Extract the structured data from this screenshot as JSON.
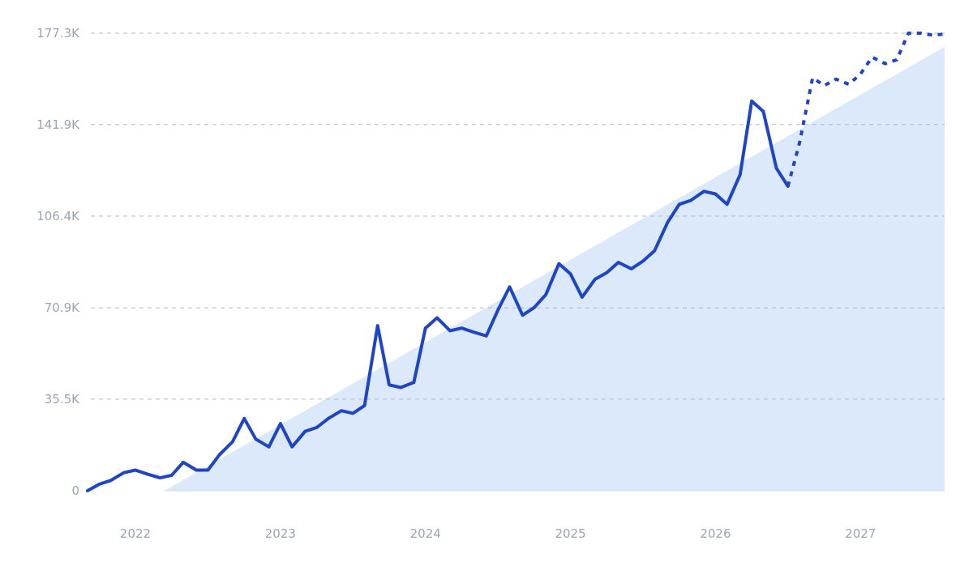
{
  "chart_data": {
    "type": "line",
    "title": "",
    "xlabel": "",
    "ylabel": "",
    "ylim": [
      0,
      177300
    ],
    "yticks": [
      0,
      35500,
      70900,
      106400,
      141900,
      177300
    ],
    "ytick_labels": [
      "0",
      "35.5K",
      "70.9K",
      "106.4K",
      "141.9K",
      "177.3K"
    ],
    "xlim": [
      2021.67,
      2027.58
    ],
    "xticks": [
      2022,
      2023,
      2024,
      2025,
      2026,
      2027
    ],
    "xtick_labels": [
      "2022",
      "2023",
      "2024",
      "2025",
      "2026",
      "2027"
    ],
    "grid": "horizontal dashed",
    "legend": "none",
    "colors": {
      "line": "#1f45c7",
      "area": "#dbe9fa",
      "grid": "#aebbd0",
      "tick": "#9aa3b5"
    },
    "series": [
      {
        "style": "solid",
        "x": [
          2021.67,
          2021.75,
          2021.83,
          2021.92,
          2022.0,
          2022.08,
          2022.17,
          2022.25,
          2022.33,
          2022.42,
          2022.5,
          2022.58,
          2022.67,
          2022.75,
          2022.83,
          2022.92,
          2023.0,
          2023.08,
          2023.17,
          2023.25,
          2023.33,
          2023.42,
          2023.5,
          2023.58,
          2023.67,
          2023.75,
          2023.83,
          2023.92,
          2024.0,
          2024.08,
          2024.17,
          2024.25,
          2024.33,
          2024.42,
          2024.5,
          2024.58,
          2024.67,
          2024.75,
          2024.83,
          2024.92,
          2025.0,
          2025.08,
          2025.17,
          2025.25,
          2025.33,
          2025.42,
          2025.5,
          2025.58,
          2025.67,
          2025.75,
          2025.83,
          2025.92,
          2026.0,
          2026.08,
          2026.17,
          2026.25,
          2026.33,
          2026.42,
          2026.5
        ],
        "values": [
          0,
          2500,
          4000,
          7000,
          8000,
          6500,
          5000,
          6000,
          11000,
          8000,
          8000,
          14000,
          19000,
          28000,
          20000,
          17000,
          26000,
          17000,
          23000,
          24500,
          28000,
          31000,
          30000,
          33000,
          64000,
          41000,
          40000,
          42000,
          63000,
          67000,
          62000,
          63000,
          61500,
          60000,
          70000,
          79000,
          68000,
          71000,
          76000,
          88000,
          84000,
          75000,
          82000,
          84500,
          88500,
          86000,
          89000,
          93000,
          104000,
          111000,
          112500,
          116000,
          115000,
          111000,
          122500,
          151000,
          147000,
          125000,
          118000
        ]
      },
      {
        "style": "dashed",
        "x": [
          2026.5,
          2026.58,
          2026.67,
          2026.75,
          2026.83,
          2026.92,
          2027.0,
          2027.08,
          2027.17,
          2027.25,
          2027.33,
          2027.42,
          2027.5,
          2027.58
        ],
        "values": [
          118000,
          135000,
          160000,
          157000,
          159500,
          157500,
          161500,
          168000,
          165500,
          167000,
          177300,
          177300,
          176500,
          177000
        ]
      }
    ],
    "area": {
      "x": [
        2022.2,
        2027.58
      ],
      "values": [
        0,
        172000
      ]
    }
  }
}
